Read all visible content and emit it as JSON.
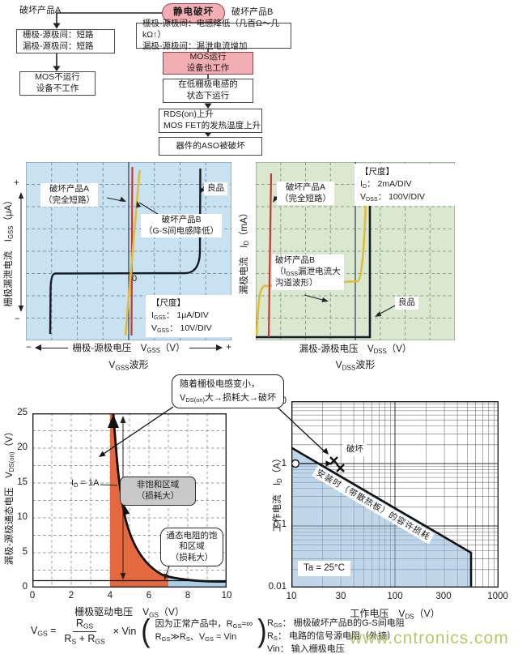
{
  "flowchart": {
    "root": "静电破坏",
    "branch_a_label": "破坏产品A",
    "branch_b_label": "破坏产品B",
    "box_a1_line1": "栅极-源极间：短路",
    "box_a1_line2": "漏极-源极间：短路",
    "box_a2_line1": "MOS不运行",
    "box_a2_line2": "设备不工作",
    "box_b1_line1": "栅极-源极间：电感降低（几百Ω～几kΩ↑）",
    "box_b1_line2": "漏极-源极间：漏泄电流增加",
    "box_b2_line1": "MOS运行",
    "box_b2_line2": "设备也工作",
    "box_b3_line1": "在低栅极电感的",
    "box_b3_line2": "状态下运行",
    "box_b4_line1": "RDS(on)上升",
    "box_b4_line2": "MOS FET的发热温度上升",
    "box_b5": "器件的ASO被破坏"
  },
  "vgss_chart": {
    "y_axis": "栅极漏泄电流　I_{GSS}（μA）",
    "y_plus": "+",
    "y_minus": "−",
    "zero": "0",
    "label_a_line1": "破坏产品A",
    "label_a_line2": "（完全短路）",
    "label_good": "良品",
    "label_b_line1": "破坏产品B",
    "label_b_line2": "（G-S间电感降低）",
    "scale_title": "【尺度】",
    "scale_line1": "I_{GSS}：  1μA/DIV",
    "scale_line2": "V_{GSS}：  10V/DIV",
    "x_minus": "−",
    "x_plus": "+",
    "x_axis": "栅极-源极电压　V_{GSS}（V）",
    "caption": "V_{GSS}波形"
  },
  "vdss_chart": {
    "y_axis": "漏极电流　I_{D}（mA）",
    "scale_title": "【尺度】",
    "scale_line1": "I_{D}：  2mA/DIV",
    "scale_line2": "V_{DSS}：  100V/DIV",
    "label_a_line1": "破坏产品A",
    "label_a_line2": "（完全短路）",
    "label_b_line1": "破坏产品B",
    "label_b_line2": "（I_{DSS}漏泄电流大",
    "label_b_line3": "沟道波形）",
    "label_good": "良品",
    "x_axis": "漏极-源极电压　V_{DSS}（V）",
    "caption": "V_{DSS}波形"
  },
  "callout": {
    "line1": "随着栅极电感变小，",
    "line2": "V_{DS(on)}大→损耗大→破坏"
  },
  "vgs_chart": {
    "y_axis": "漏极-源极通态电压　V_{DS(on)}（V）",
    "x_axis": "栅极驱动电压　V_{GS}（V）",
    "y_ticks": [
      "25",
      "20",
      "15",
      "10",
      "5",
      "0"
    ],
    "x_ticks": [
      "0",
      "2",
      "4",
      "6",
      "8",
      "10"
    ],
    "id_label": "I_{D} = 1A",
    "region1_line1": "非饱和区域",
    "region1_line2": "（损耗大）",
    "region2_line1": "通态电阻的饱",
    "region2_line2": "和区域",
    "region2_line3": "（损耗大）"
  },
  "aso_chart": {
    "y_axis": "工作电流　I_{D}（A）",
    "x_axis": "工作电压　V_{DS}（V）",
    "y_ticks": [
      "10",
      "1",
      "0.1",
      "0.01"
    ],
    "x_ticks": [
      "10",
      "30",
      "100",
      "300",
      "1000"
    ],
    "damage_label": "破坏",
    "diag_label": "安装时（带散热板）的容许损耗",
    "ta_label": "Ta = 25°C"
  },
  "formula": {
    "lhs": "V_{GS} =",
    "numerator": "R_{GS}",
    "denominator": "R_{S} + R_{GS}",
    "rhs": "× Vin",
    "paren_open": "(",
    "note_line1": "因为正常产品中，R_{GS}≈∞",
    "note_line2": "R_{GS}≫R_{S}、V_{GS} = Vin",
    "paren_close": ")"
  },
  "legend": {
    "line1": "R_{GS}：  栅极破坏产品B的G-S间电阻",
    "line2": "R_{S}：  电路的信号源电阻（外接）",
    "line3": "Vin：  输入栅极电压"
  },
  "watermark": "www.cntronics.com",
  "colors": {
    "pink_box": "#f3aeb3",
    "vgss_bg": "#c9e2f2",
    "vdss_bg": "#d9e8cf",
    "trace_red": "#cc3530",
    "trace_yellow": "#dfbc3c",
    "trace_black": "#141e28",
    "region_orange": "#e5693f",
    "region_blue": "#a9cfe7",
    "aso_fill": "#8cb4d7",
    "watermark_green": "#b2c662"
  },
  "chart_data": [
    {
      "type": "line",
      "title": "V_GSS波形（栅极-源极电压扫描）",
      "xlabel": "栅极-源极电压 V_GSS (V)",
      "ylabel": "栅极漏泄电流 I_GSS (μA)",
      "scale": {
        "I_GSS": "1μA/DIV",
        "V_GSS": "10V/DIV"
      },
      "grid": "oscilloscope 8x8 divisions, dashed",
      "series": [
        {
          "name": "良品",
          "shape": "近零电流平坦线，±约30V(±3格)处击穿陡升",
          "points_div": [
            [
              -3.1,
              -4
            ],
            [
              -3.0,
              -0.05
            ],
            [
              0,
              0
            ],
            [
              2.8,
              0.05
            ],
            [
              2.85,
              4
            ]
          ]
        },
        {
          "name": "破坏产品A（完全短路）",
          "shape": "过原点近乎垂直的直线",
          "points_div": [
            [
              0.1,
              -4
            ],
            [
              0.15,
              4
            ]
          ]
        },
        {
          "name": "破坏产品B（G-S间电感降低）",
          "shape": "过原点的斜直线（几百Ω～几kΩ）",
          "points_div": [
            [
              -0.25,
              -4
            ],
            [
              0.4,
              4
            ]
          ]
        }
      ]
    },
    {
      "type": "line",
      "title": "V_DSS波形（漏极-源极电压扫描）",
      "xlabel": "漏极-源极电压 V_DSS (V)",
      "ylabel": "漏极电流 I_D (mA)",
      "scale": {
        "I_D": "2mA/DIV",
        "V_DSS": "100V/DIV"
      },
      "grid": "oscilloscope 8x8 divisions, dashed",
      "series": [
        {
          "name": "良品",
          "shape": "零电流直到击穿电压(约+4.6格)后垂直上升",
          "points_div": [
            [
              0,
              0
            ],
            [
              4.6,
              0
            ],
            [
              4.65,
              7.5
            ]
          ]
        },
        {
          "name": "破坏产品A（完全短路）",
          "shape": "左侧近垂直直线（低阻）",
          "points_div": [
            [
              0.55,
              0
            ],
            [
              0.65,
              7.3
            ]
          ]
        },
        {
          "name": "破坏产品B（IDSS漏泄电流大 沟道波形）",
          "shape": "漏电流平台后在击穿前陡升",
          "points_div": [
            [
              0,
              0
            ],
            [
              0.3,
              2.3
            ],
            [
              4.2,
              2.5
            ],
            [
              4.5,
              7.5
            ]
          ]
        }
      ]
    },
    {
      "type": "line",
      "title": "V_DS(on) 对 栅极驱动电压（I_D = 1A）",
      "xlabel": "栅极驱动电压 V_GS (V)",
      "ylabel": "漏极-源极通态电压 V_DS(on) (V)",
      "xlim": [
        0,
        10
      ],
      "ylim": [
        0,
        25
      ],
      "condition": "I_D = 1A",
      "curve_points": [
        [
          4.2,
          25
        ],
        [
          4.4,
          18
        ],
        [
          4.7,
          12
        ],
        [
          5.0,
          8
        ],
        [
          5.5,
          4.8
        ],
        [
          6.0,
          3.2
        ],
        [
          7.0,
          1.8
        ],
        [
          8.0,
          1.3
        ],
        [
          10.0,
          1.05
        ]
      ],
      "reference_line_y": 1,
      "regions": [
        {
          "name": "非饱和区域（损耗大）",
          "x_range": [
            4,
            7
          ],
          "color": "#e5693f"
        },
        {
          "name": "通态电阻的饱和区域（损耗大）",
          "x_range": [
            7,
            10
          ],
          "color": "#a9cfe7"
        }
      ]
    },
    {
      "type": "line",
      "title": "安装时（带散热板）的容许损耗 (ASO)",
      "xlabel": "工作电压 V_DS (V)",
      "ylabel": "工作电流 I_D (A)",
      "xscale": "log",
      "yscale": "log",
      "xlim": [
        10,
        1000
      ],
      "ylim": [
        0.01,
        10
      ],
      "condition": "Ta = 25°C",
      "boundary_points": [
        [
          10,
          1.8
        ],
        [
          540,
          0.033
        ],
        [
          540,
          0.01
        ]
      ],
      "markers": [
        {
          "type": "circle",
          "v": 10,
          "i": 1.0
        },
        {
          "type": "x",
          "v": 25,
          "i": 1.1,
          "label": "破坏"
        },
        {
          "type": "x",
          "v": 29,
          "i": 0.85
        }
      ]
    }
  ]
}
